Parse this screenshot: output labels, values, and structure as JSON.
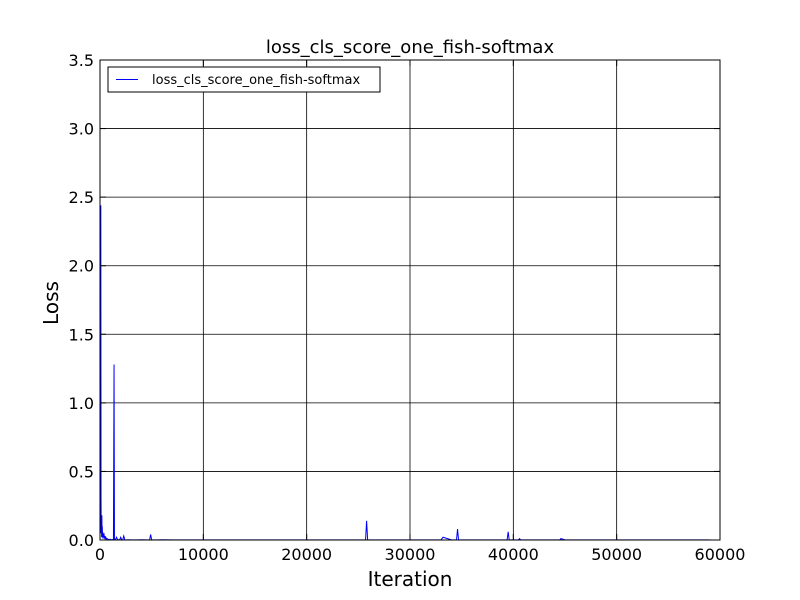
{
  "chart_data": {
    "type": "line",
    "title": "loss_cls_score_one_fish-softmax",
    "xlabel": "Iteration",
    "ylabel": "Loss",
    "xlim": [
      0,
      60000
    ],
    "ylim": [
      0,
      3.5
    ],
    "xticks": [
      0,
      10000,
      20000,
      30000,
      40000,
      50000,
      60000
    ],
    "xtick_labels": [
      "0",
      "10000",
      "20000",
      "30000",
      "40000",
      "50000",
      "60000"
    ],
    "yticks": [
      0,
      0.5,
      1.0,
      1.5,
      2.0,
      2.5,
      3.0,
      3.5
    ],
    "ytick_labels": [
      "0.0",
      "0.5",
      "1.0",
      "1.5",
      "2.0",
      "2.5",
      "3.0",
      "3.5"
    ],
    "grid": true,
    "legend_position": "top-left",
    "series": [
      {
        "name": "loss_cls_score_one_fish-softmax",
        "color": "#0000ff",
        "x": [
          0,
          20,
          40,
          60,
          80,
          100,
          120,
          140,
          160,
          180,
          200,
          220,
          240,
          260,
          280,
          300,
          340,
          380,
          420,
          460,
          500,
          560,
          620,
          700,
          800,
          900,
          1000,
          1100,
          1200,
          1300,
          1360,
          1400,
          1440,
          1500,
          1600,
          1700,
          1800,
          1900,
          2000,
          2100,
          2200,
          2300,
          2400,
          2600,
          2800,
          3000,
          3500,
          4000,
          4500,
          4800,
          4900,
          5000,
          5500,
          6000,
          7000,
          8000,
          10000,
          12000,
          15000,
          18000,
          20000,
          22000,
          24000,
          25000,
          25700,
          25800,
          25900,
          26000,
          27000,
          28000,
          28500,
          30000,
          32000,
          33000,
          33200,
          34000,
          34500,
          34600,
          34700,
          35000,
          37000,
          39000,
          39400,
          39500,
          39600,
          40000,
          40500,
          40600,
          40700,
          42000,
          44000,
          44500,
          44600,
          45000,
          47000,
          50000,
          52000,
          55000,
          58000,
          59000
        ],
        "y": [
          0.24,
          0.08,
          0.2,
          0.05,
          2.44,
          0.3,
          0.05,
          0.1,
          0.02,
          0.18,
          0.04,
          0.1,
          0.02,
          0.06,
          0.01,
          0.03,
          0.02,
          0.05,
          0.01,
          0.03,
          0.01,
          0.02,
          0.005,
          0.01,
          0.005,
          0.003,
          0.005,
          0.002,
          0.003,
          0.002,
          1.28,
          0.004,
          0.002,
          0.003,
          0.02,
          0.003,
          0.002,
          0.001,
          0.02,
          0.002,
          0.001,
          0.03,
          0.002,
          0.001,
          0.002,
          0.001,
          0.001,
          0.002,
          0.001,
          0.001,
          0.04,
          0.001,
          0.001,
          0.002,
          0.001,
          0.001,
          0.001,
          0.001,
          0.001,
          0.001,
          0.001,
          0.001,
          0.001,
          0.001,
          0.001,
          0.14,
          0.001,
          0.001,
          0.001,
          0.001,
          0.001,
          0.001,
          0.001,
          0.001,
          0.02,
          0.001,
          0.001,
          0.08,
          0.001,
          0.001,
          0.001,
          0.001,
          0.001,
          0.06,
          0.001,
          0.001,
          0.001,
          0.01,
          0.001,
          0.001,
          0.001,
          0.001,
          0.01,
          0.001,
          0.001,
          0.001,
          0.001,
          0.001,
          0.001,
          0.001
        ]
      }
    ]
  }
}
